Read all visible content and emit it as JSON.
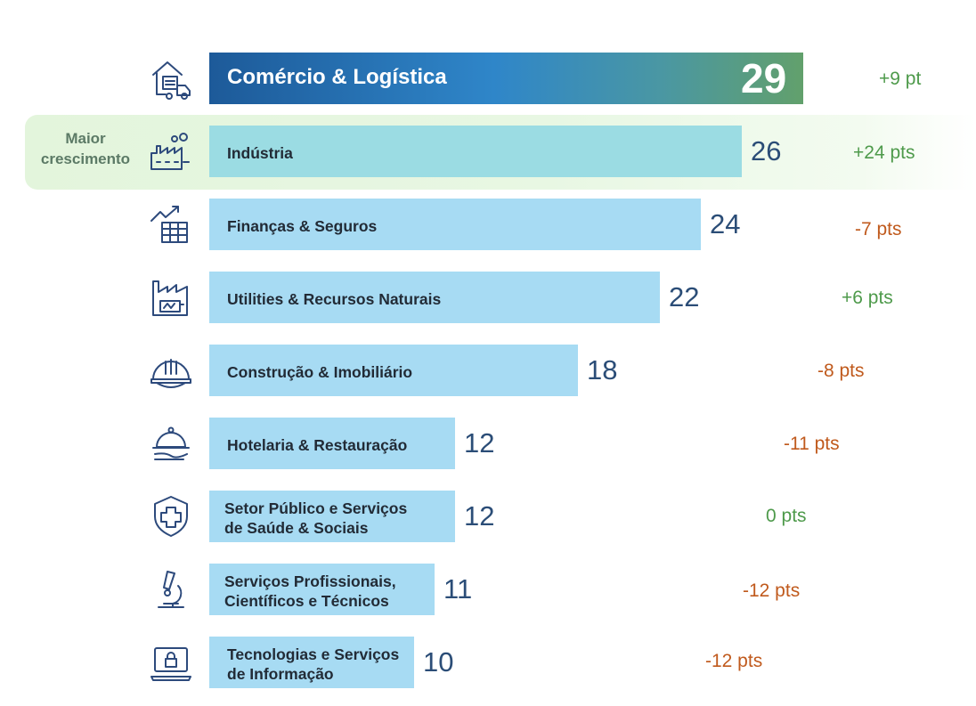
{
  "highlight_label": "Maior\ncrescimento",
  "colors": {
    "positive": "#4e9a4b",
    "negative": "#c05a1d",
    "value": "#2b4d77"
  },
  "chart_data": {
    "type": "bar",
    "orientation": "horizontal",
    "title": "",
    "xlabel": "",
    "ylabel": "",
    "xlim": [
      0,
      29
    ],
    "categories": [
      "Comércio & Logística",
      "Indústria",
      "Finanças & Seguros",
      "Utilities & Recursos Naturais",
      "Construção & Imobiliário",
      "Hotelaria & Restauração",
      "Setor Público e Serviços\nde Saúde & Sociais",
      "Serviços Profissionais,\nCientíficos e Técnicos",
      "Tecnologias e Serviços\nde Informação"
    ],
    "values": [
      29,
      26,
      24,
      22,
      18,
      12,
      12,
      11,
      10
    ],
    "changes": [
      "+9 pt",
      "+24 pts",
      "-7 pts",
      "+6 pts",
      "-8 pts",
      "-11 pts",
      "0 pts",
      "-12 pts",
      "-12 pts"
    ],
    "change_direction": [
      "positive",
      "positive",
      "negative",
      "positive",
      "negative",
      "negative",
      "positive",
      "negative",
      "negative"
    ],
    "icons": [
      "warehouse-truck-icon",
      "factory-icon",
      "finance-chart-icon",
      "utilities-icon",
      "hard-hat-icon",
      "cloche-icon",
      "medical-shield-icon",
      "microscope-icon",
      "laptop-lock-icon"
    ],
    "highlighted_index": 1
  }
}
